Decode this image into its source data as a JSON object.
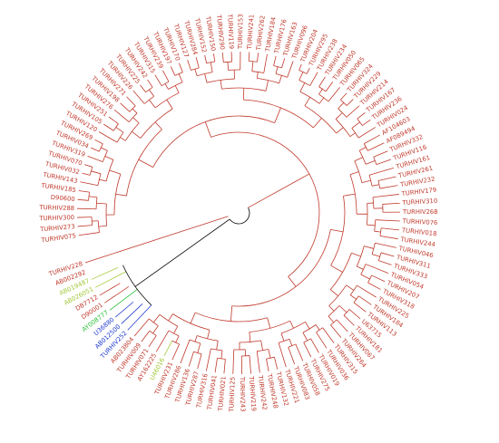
{
  "tree": {
    "root_label": "",
    "colors": {
      "cluster_red": "#c0392b",
      "outgroup_blue": "#1f3bd1",
      "outgroup_green": "#2bbf3a",
      "outgroup_yellowgreen": "#a3c93a",
      "root_branch": "#000000"
    },
    "leaves": [
      {
        "label": "TURHIV075",
        "group": "red"
      },
      {
        "label": "TURHIV273",
        "group": "red"
      },
      {
        "label": "TURHIV300",
        "group": "red"
      },
      {
        "label": "TURHIV288",
        "group": "red"
      },
      {
        "label": "D90600",
        "group": "red"
      },
      {
        "label": "TURHIV185",
        "group": "red"
      },
      {
        "label": "TURHIV143",
        "group": "red"
      },
      {
        "label": "TURHIV032",
        "group": "red"
      },
      {
        "label": "TURHIV070",
        "group": "red"
      },
      {
        "label": "TURHIV319",
        "group": "red"
      },
      {
        "label": "TURHIV034",
        "group": "red"
      },
      {
        "label": "TURHIV269",
        "group": "red"
      },
      {
        "label": "TURHIV120",
        "group": "red"
      },
      {
        "label": "TURHIV105",
        "group": "red"
      },
      {
        "label": "TURHIV251",
        "group": "red"
      },
      {
        "label": "TURHIV276",
        "group": "red"
      },
      {
        "label": "TURHIV198",
        "group": "red"
      },
      {
        "label": "TURHIV271",
        "group": "red"
      },
      {
        "label": "TURHIV226",
        "group": "red"
      },
      {
        "label": "TURHIV225",
        "group": "red"
      },
      {
        "label": "TURHIV242",
        "group": "red"
      },
      {
        "label": "TURHIV315",
        "group": "red"
      },
      {
        "label": "TURHIV239",
        "group": "red"
      },
      {
        "label": "TURHIV197",
        "group": "red"
      },
      {
        "label": "TURHIV170",
        "group": "red"
      },
      {
        "label": "TURHIV127",
        "group": "red"
      },
      {
        "label": "TURHIV284",
        "group": "red"
      },
      {
        "label": "TURHIV152",
        "group": "red"
      },
      {
        "label": "TURHIV150",
        "group": "red"
      },
      {
        "label": "TURHIV290",
        "group": "red"
      },
      {
        "label": "TURHIV119",
        "group": "red"
      },
      {
        "label": "TURHIV153",
        "group": "red"
      },
      {
        "label": "TURHIV241",
        "group": "red"
      },
      {
        "label": "TURHIV262",
        "group": "red"
      },
      {
        "label": "TURHIV184",
        "group": "red"
      },
      {
        "label": "TURHIV176",
        "group": "red"
      },
      {
        "label": "TURHIV163",
        "group": "red"
      },
      {
        "label": "TURHIV096",
        "group": "red"
      },
      {
        "label": "TURHIV204",
        "group": "red"
      },
      {
        "label": "TURHIV295",
        "group": "red"
      },
      {
        "label": "TURHIV238",
        "group": "red"
      },
      {
        "label": "TURHIV234",
        "group": "red"
      },
      {
        "label": "TURHIV050",
        "group": "red"
      },
      {
        "label": "TURHIV065",
        "group": "red"
      },
      {
        "label": "TURHIV324",
        "group": "red"
      },
      {
        "label": "TURHIV229",
        "group": "red"
      },
      {
        "label": "TURHIV214",
        "group": "red"
      },
      {
        "label": "TURHIV167",
        "group": "red"
      },
      {
        "label": "TURHIV236",
        "group": "red"
      },
      {
        "label": "TURHIV024",
        "group": "red"
      },
      {
        "label": "AF104603",
        "group": "red"
      },
      {
        "label": "AF089494",
        "group": "red"
      },
      {
        "label": "TURHIV332",
        "group": "red"
      },
      {
        "label": "TURHIV116",
        "group": "red"
      },
      {
        "label": "TURHIV161",
        "group": "red"
      },
      {
        "label": "TURHIV261",
        "group": "red"
      },
      {
        "label": "TURHIV232",
        "group": "red"
      },
      {
        "label": "TURHIV179",
        "group": "red"
      },
      {
        "label": "TURHIV310",
        "group": "red"
      },
      {
        "label": "TURHIV268",
        "group": "red"
      },
      {
        "label": "TURHIV076",
        "group": "red"
      },
      {
        "label": "TURHIV018",
        "group": "red"
      },
      {
        "label": "TURHIV244",
        "group": "red"
      },
      {
        "label": "TURHIV046",
        "group": "red"
      },
      {
        "label": "TURHIV311",
        "group": "red"
      },
      {
        "label": "TURHIV333",
        "group": "red"
      },
      {
        "label": "TURHIV054",
        "group": "red"
      },
      {
        "label": "TURHIV207",
        "group": "red"
      },
      {
        "label": "TURHIV318",
        "group": "red"
      },
      {
        "label": "TURHIV225",
        "group": "red"
      },
      {
        "label": "TURHIV184",
        "group": "red"
      },
      {
        "label": "TURHIV113",
        "group": "red"
      },
      {
        "label": "U63715",
        "group": "red"
      },
      {
        "label": "TURHIV181",
        "group": "red"
      },
      {
        "label": "TURHIV067",
        "group": "red"
      },
      {
        "label": "TURHIV264",
        "group": "red"
      },
      {
        "label": "TURHIV315",
        "group": "red"
      },
      {
        "label": "TURHIV036",
        "group": "red"
      },
      {
        "label": "TURHIV019",
        "group": "red"
      },
      {
        "label": "TURHIV275",
        "group": "red"
      },
      {
        "label": "TURHIV058",
        "group": "red"
      },
      {
        "label": "TURHIV083",
        "group": "red"
      },
      {
        "label": "TURHIV221",
        "group": "red"
      },
      {
        "label": "TURHIV132",
        "group": "red"
      },
      {
        "label": "TURHIV248",
        "group": "red"
      },
      {
        "label": "TURHIV242",
        "group": "red"
      },
      {
        "label": "TURHIV219",
        "group": "red"
      },
      {
        "label": "TURHIV243",
        "group": "red"
      },
      {
        "label": "TURHIV125",
        "group": "red"
      },
      {
        "label": "TURHIV021",
        "group": "red"
      },
      {
        "label": "TURHIV041",
        "group": "red"
      },
      {
        "label": "TURHIV316",
        "group": "red"
      },
      {
        "label": "TURHIV287",
        "group": "red"
      },
      {
        "label": "TURHIV136",
        "group": "red"
      },
      {
        "label": "TURHIV286",
        "group": "red"
      },
      {
        "label": "TURHIV231",
        "group": "red"
      },
      {
        "label": "U46016",
        "group": "yellowgreen"
      },
      {
        "label": "AY162225",
        "group": "red"
      },
      {
        "label": "TURHIV071",
        "group": "red"
      },
      {
        "label": "TURHIV009",
        "group": "red"
      },
      {
        "label": "AB023804",
        "group": "red"
      },
      {
        "label": "TURHIV252",
        "group": "blue"
      },
      {
        "label": "AB012500",
        "group": "blue"
      },
      {
        "label": "U36880",
        "group": "blue"
      },
      {
        "label": "AY008777",
        "group": "green"
      },
      {
        "label": "D90001",
        "group": "red"
      },
      {
        "label": "DB7712",
        "group": "red"
      },
      {
        "label": "AB026051",
        "group": "yellowgreen"
      },
      {
        "label": "AB019487",
        "group": "yellowgreen"
      },
      {
        "label": "AB002292",
        "group": "red"
      },
      {
        "label": "TURHIV228",
        "group": "red"
      }
    ]
  }
}
